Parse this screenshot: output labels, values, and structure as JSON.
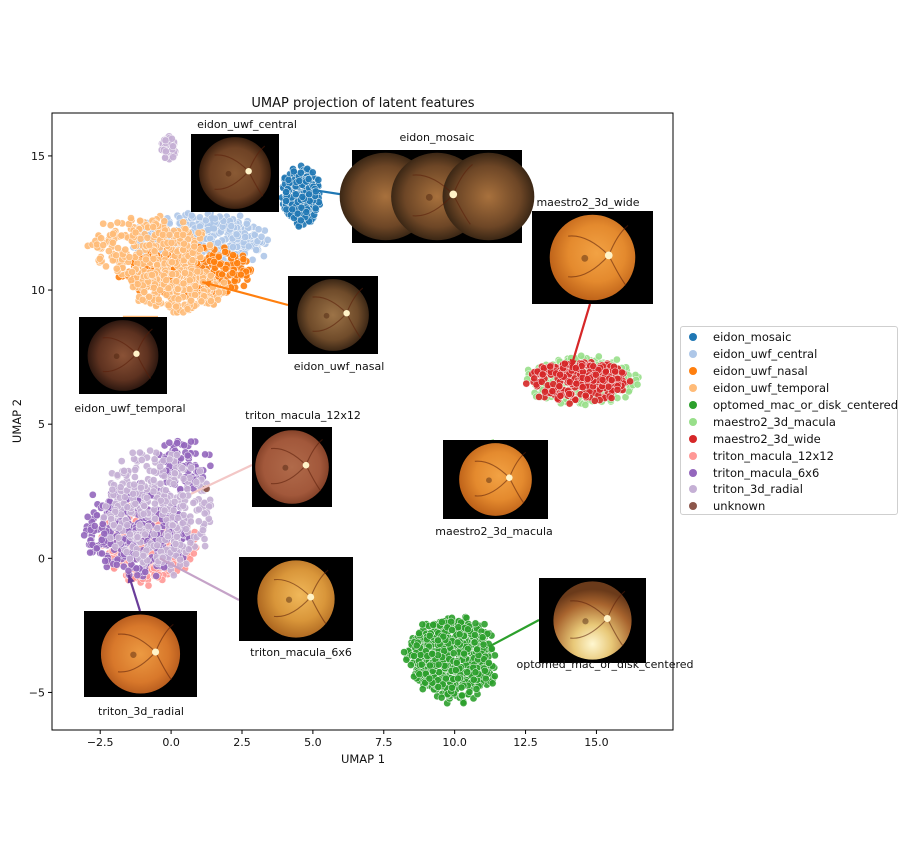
{
  "chart_data": {
    "type": "scatter",
    "title": "UMAP projection of latent features",
    "xlabel": "UMAP 1",
    "ylabel": "UMAP 2",
    "xlim": [
      -4.2,
      17.7
    ],
    "ylim": [
      -6.4,
      16.6
    ],
    "xticks": [
      -2.5,
      0.0,
      2.5,
      5.0,
      7.5,
      10.0,
      12.5,
      15.0
    ],
    "xtick_labels": [
      "−2.5",
      "0.0",
      "2.5",
      "5.0",
      "7.5",
      "10.0",
      "12.5",
      "15.0"
    ],
    "yticks": [
      -5,
      0,
      5,
      10,
      15
    ],
    "ytick_labels": [
      "−5",
      "0",
      "5",
      "10",
      "15"
    ],
    "grid": false,
    "legend_position": "right, outside plot",
    "series": [
      {
        "name": "eidon_mosaic",
        "color": "#1f77b4",
        "clusters": [
          {
            "cx": 4.6,
            "cy": 13.5,
            "rx": 0.65,
            "ry": 1.1,
            "n": 260
          }
        ]
      },
      {
        "name": "eidon_uwf_central",
        "color": "#aec7e8",
        "clusters": [
          {
            "cx": 1.0,
            "cy": 11.8,
            "rx": 2.3,
            "ry": 1.0,
            "n": 380
          }
        ]
      },
      {
        "name": "eidon_uwf_nasal",
        "color": "#ff7f0e",
        "clusters": [
          {
            "cx": 0.6,
            "cy": 10.7,
            "rx": 2.2,
            "ry": 0.9,
            "n": 420
          }
        ]
      },
      {
        "name": "eidon_uwf_temporal",
        "color": "#ffbb78",
        "clusters": [
          {
            "cx": -0.8,
            "cy": 11.6,
            "rx": 2.0,
            "ry": 1.1,
            "n": 260
          },
          {
            "cx": 0.3,
            "cy": 10.0,
            "rx": 1.6,
            "ry": 0.8,
            "n": 240
          }
        ]
      },
      {
        "name": "optomed_mac_or_disk_centered",
        "color": "#2ca02c",
        "clusters": [
          {
            "cx": 9.9,
            "cy": -3.7,
            "rx": 1.5,
            "ry": 1.5,
            "n": 650
          }
        ]
      },
      {
        "name": "maestro2_3d_macula",
        "color": "#98df8a",
        "clusters": [
          {
            "cx": 14.5,
            "cy": 6.6,
            "rx": 1.9,
            "ry": 0.85,
            "n": 300
          }
        ]
      },
      {
        "name": "maestro2_3d_wide",
        "color": "#d62728",
        "clusters": [
          {
            "cx": 14.4,
            "cy": 6.6,
            "rx": 1.7,
            "ry": 0.75,
            "n": 260
          }
        ]
      },
      {
        "name": "triton_macula_12x12",
        "color": "#ff9896",
        "clusters": [
          {
            "cx": -0.8,
            "cy": 0.5,
            "rx": 1.6,
            "ry": 1.4,
            "n": 300
          }
        ]
      },
      {
        "name": "triton_macula_6x6",
        "color": "#9467bd",
        "clusters": [
          {
            "cx": -1.2,
            "cy": 1.0,
            "rx": 1.8,
            "ry": 1.6,
            "n": 330
          },
          {
            "cx": 0.5,
            "cy": 3.5,
            "rx": 0.9,
            "ry": 1.0,
            "n": 90
          }
        ]
      },
      {
        "name": "triton_3d_radial",
        "color": "#c5b0d5",
        "clusters": [
          {
            "cx": -0.5,
            "cy": 1.8,
            "rx": 1.9,
            "ry": 2.2,
            "n": 320
          },
          {
            "cx": -0.1,
            "cy": 15.3,
            "rx": 0.25,
            "ry": 0.45,
            "n": 50
          }
        ]
      },
      {
        "name": "unknown",
        "color": "#8c564b",
        "clusters": [
          {
            "cx": 1.2,
            "cy": 2.6,
            "rx": 0.05,
            "ry": 0.05,
            "n": 2
          }
        ]
      }
    ],
    "annotations": [
      {
        "label": "eidon_uwf_central",
        "img": "fundus-flat",
        "point": [
          1.4,
          12.2
        ],
        "arrow_color": "#aec7e8",
        "arrow_head": false
      },
      {
        "label": "eidon_mosaic",
        "img": "fundus-mosaic",
        "point": [
          5.2,
          13.7
        ],
        "arrow_color": "#1f77b4",
        "arrow_head": false
      },
      {
        "label": "maestro2_3d_wide",
        "img": "fundus-orange",
        "point": [
          14.1,
          7.1
        ],
        "arrow_color": "#d62728",
        "arrow_head": true
      },
      {
        "label": "eidon_uwf_nasal",
        "img": "fundus-uwf",
        "point": [
          1.1,
          10.3
        ],
        "arrow_color": "#ff7f0e",
        "arrow_head": true
      },
      {
        "label": "eidon_uwf_temporal",
        "img": "fundus-uwf-dark",
        "point": [
          -1.7,
          9.0
        ],
        "arrow_color": "#ffbb78",
        "arrow_head": false
      },
      {
        "label": "triton_macula_12x12",
        "img": "fundus-red",
        "point": [
          0.7,
          2.4
        ],
        "arrow_color": "#f3c7c6",
        "arrow_head": false
      },
      {
        "label": "maestro2_3d_macula",
        "img": "fundus-orange",
        "point": [
          11.1,
          4.3
        ],
        "arrow_color": "#98df8a",
        "arrow_head": false
      },
      {
        "label": "triton_macula_6x6",
        "img": "fundus-yellow",
        "point": [
          -0.4,
          0.0
        ],
        "arrow_color": "#c5a3c8",
        "arrow_head": false
      },
      {
        "label": "triton_3d_radial",
        "img": "fundus-orange2",
        "point": [
          -1.5,
          -0.6
        ],
        "arrow_color": "#6a3d9a",
        "arrow_head": true
      },
      {
        "label": "optomed_mac_or_disk_centered",
        "img": "fundus-bright",
        "point": [
          11.2,
          -3.3
        ],
        "arrow_color": "#2ca02c",
        "arrow_head": false
      }
    ]
  }
}
